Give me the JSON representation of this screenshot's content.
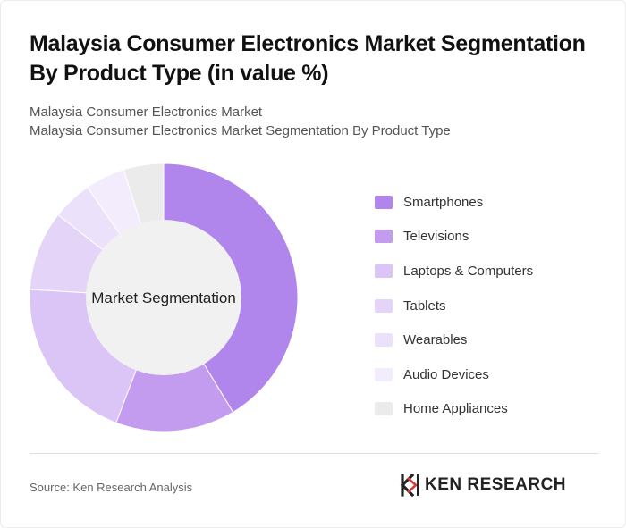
{
  "header": {
    "title": "Malaysia Consumer Electronics Market Segmentation By Product Type (in value %)",
    "subtitle_line1": "Malaysia Consumer Electronics Market",
    "subtitle_line2": "Malaysia Consumer Electronics Market Segmentation By Product Type"
  },
  "chart_data": {
    "type": "pie",
    "variant": "donut",
    "center_label": "Market Segmentation",
    "categories": [
      "Smartphones",
      "Televisions",
      "Laptops & Computers",
      "Tablets",
      "Wearables",
      "Audio Devices",
      "Home Appliances"
    ],
    "values": [
      43,
      15,
      21,
      10,
      5,
      5,
      5
    ],
    "colors": [
      "#b085ec",
      "#c49cef",
      "#dbc4f6",
      "#e4d4f8",
      "#ece1fa",
      "#f3ecfc",
      "#ebebeb"
    ],
    "center_fill": "#f1f1f1",
    "legend_position": "right"
  },
  "footer": {
    "source": "Source: Ken Research Analysis",
    "logo_text": "KEN RESEARCH"
  }
}
